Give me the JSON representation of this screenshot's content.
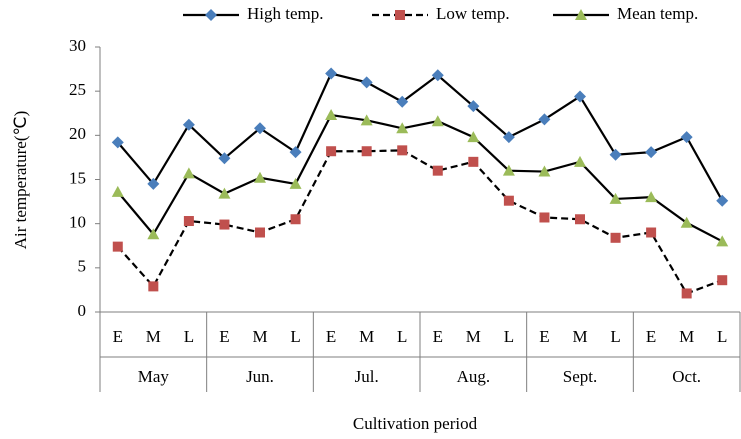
{
  "chart_data": {
    "type": "line",
    "y_label": "Air temperature(℃)",
    "x_label": "Cultivation period",
    "categories": [
      "E",
      "M",
      "L",
      "E",
      "M",
      "L",
      "E",
      "M",
      "L",
      "E",
      "M",
      "L",
      "E",
      "M",
      "L",
      "E",
      "M",
      "L"
    ],
    "groups": [
      "May",
      "Jun.",
      "Jul.",
      "Aug.",
      "Sept.",
      "Oct."
    ],
    "ylim": [
      0,
      30
    ],
    "yticks": [
      0,
      5,
      10,
      15,
      20,
      25,
      30
    ],
    "grid": false,
    "legend": "top",
    "line_color": "#000000",
    "series": [
      {
        "name": "High temp.",
        "color": "#4a7ebb",
        "marker": "diamond",
        "line_style": "solid",
        "values": [
          19.2,
          14.5,
          21.2,
          17.4,
          20.8,
          18.1,
          27.0,
          26.0,
          23.8,
          26.8,
          23.3,
          19.8,
          21.8,
          24.4,
          17.8,
          18.1,
          19.8,
          12.6
        ]
      },
      {
        "name": "Low temp.",
        "color": "#c0504d",
        "marker": "square",
        "line_style": "dashed",
        "values": [
          7.4,
          2.9,
          10.3,
          9.9,
          9.0,
          10.5,
          18.2,
          18.2,
          18.3,
          16.0,
          17.0,
          12.6,
          10.7,
          10.5,
          8.4,
          9.0,
          2.1,
          3.6
        ]
      },
      {
        "name": "Mean temp.",
        "color": "#9bbb59",
        "marker": "triangle",
        "line_style": "solid",
        "values": [
          13.6,
          8.8,
          15.7,
          13.4,
          15.2,
          14.5,
          22.3,
          21.7,
          20.8,
          21.6,
          19.8,
          16.0,
          15.9,
          17.0,
          12.8,
          13.0,
          10.1,
          8.0
        ]
      }
    ]
  }
}
